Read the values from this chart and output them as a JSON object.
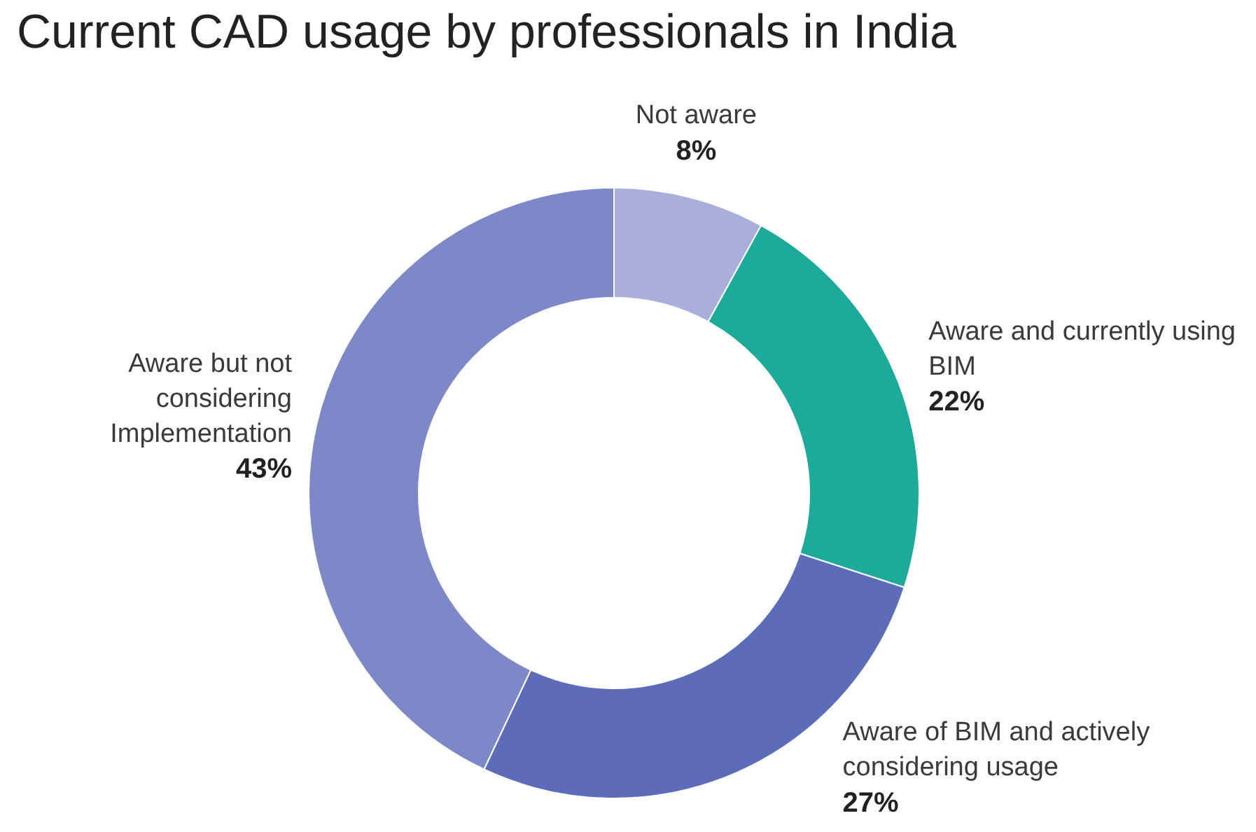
{
  "chart_data": {
    "type": "donut",
    "title": "Current CAD usage by professionals in India",
    "categories": [
      "Not aware",
      "Aware and currently using BIM",
      "Aware of BIM and actively considering usage",
      "Aware but not considering Implementation"
    ],
    "values": [
      8,
      22,
      27,
      43
    ],
    "value_labels": [
      "8%",
      "22%",
      "27%",
      "43%"
    ],
    "colors": [
      "#aaaedb",
      "#1caa9b",
      "#5c6cb9",
      "#7d88c9"
    ],
    "legend": false
  }
}
